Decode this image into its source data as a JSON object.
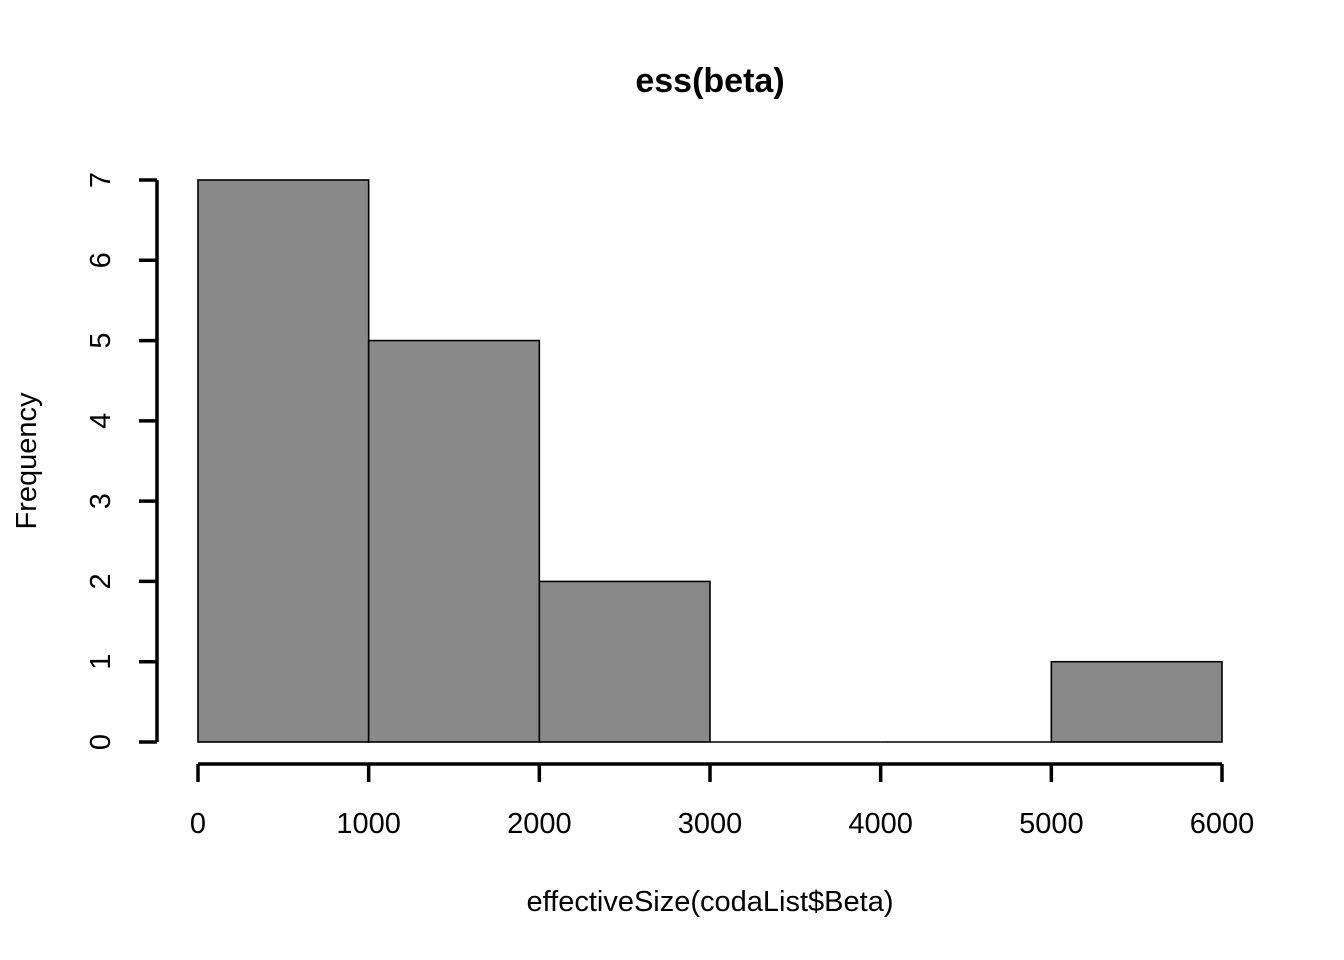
{
  "chart_data": {
    "type": "bar",
    "title": "ess(beta)",
    "xlabel": "effectiveSize(codaList$Beta)",
    "ylabel": "Frequency",
    "bins": [
      {
        "x0": 0,
        "x1": 1000,
        "count": 7
      },
      {
        "x0": 1000,
        "x1": 2000,
        "count": 5
      },
      {
        "x0": 2000,
        "x1": 3000,
        "count": 2
      },
      {
        "x0": 3000,
        "x1": 4000,
        "count": 0
      },
      {
        "x0": 4000,
        "x1": 5000,
        "count": 0
      },
      {
        "x0": 5000,
        "x1": 6000,
        "count": 1
      }
    ],
    "xlim": [
      0,
      6000
    ],
    "ylim": [
      0,
      7
    ],
    "xticks": [
      "0",
      "1000",
      "2000",
      "3000",
      "4000",
      "5000",
      "6000"
    ],
    "yticks": [
      "0",
      "1",
      "2",
      "3",
      "4",
      "5",
      "6",
      "7"
    ],
    "grid": false,
    "colors": {
      "bar_fill": "#898989",
      "bar_stroke": "#000000",
      "axis": "#000000"
    }
  }
}
